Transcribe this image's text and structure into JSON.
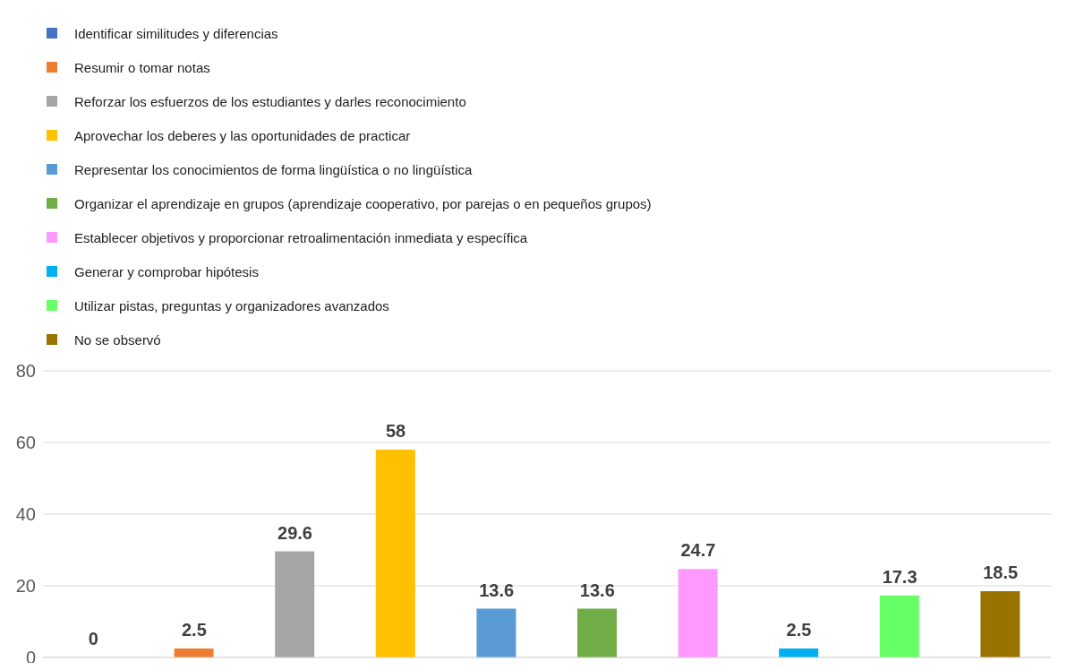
{
  "chart_data": {
    "type": "bar",
    "categories": [
      null,
      null,
      null,
      null,
      null,
      null,
      null,
      null,
      null,
      null
    ],
    "stacked": true,
    "series": [
      {
        "name": "Identificar similitudes y diferencias",
        "color": "#4472c4",
        "values": [
          0,
          null,
          null,
          null,
          null,
          null,
          null,
          null,
          null,
          null
        ]
      },
      {
        "name": "Resumir o tomar notas",
        "color": "#ed7d31",
        "values": [
          null,
          2.5,
          null,
          null,
          null,
          null,
          null,
          null,
          null,
          null
        ]
      },
      {
        "name": "Reforzar los esfuerzos de los estudiantes y darles reconocimiento",
        "color": "#a5a5a5",
        "values": [
          null,
          null,
          29.6,
          null,
          null,
          null,
          null,
          null,
          null,
          null
        ]
      },
      {
        "name": "Aprovechar los deberes y las oportunidades de practicar",
        "color": "#ffc000",
        "values": [
          null,
          null,
          null,
          58,
          null,
          null,
          null,
          null,
          null,
          null
        ]
      },
      {
        "name": "Representar los conocimientos de forma lingüística o no lingüística",
        "color": "#5b9bd5",
        "values": [
          null,
          null,
          null,
          null,
          13.6,
          null,
          null,
          null,
          null,
          null
        ]
      },
      {
        "name": "Organizar el aprendizaje en grupos (aprendizaje cooperativo, por parejas o en pequeños grupos)",
        "color": "#70ad47",
        "values": [
          null,
          null,
          null,
          null,
          null,
          13.6,
          null,
          null,
          null,
          null
        ]
      },
      {
        "name": "Establecer objetivos y proporcionar retroalimentación inmediata y específica",
        "color": "#ff99ff",
        "values": [
          null,
          null,
          null,
          null,
          null,
          null,
          24.7,
          null,
          null,
          null
        ]
      },
      {
        "name": "Generar y comprobar hipótesis",
        "color": "#00b0f0",
        "values": [
          null,
          null,
          null,
          null,
          null,
          null,
          null,
          2.5,
          null,
          null
        ]
      },
      {
        "name": "Utilizar pistas, preguntas y organizadores avanzados",
        "color": "#66ff66",
        "values": [
          null,
          null,
          null,
          null,
          null,
          null,
          null,
          null,
          17.3,
          null
        ]
      },
      {
        "name": "No se observó",
        "color": "#997300",
        "values": [
          null,
          null,
          null,
          null,
          null,
          null,
          null,
          null,
          null,
          18.5
        ]
      }
    ],
    "ylim": [
      0,
      80
    ],
    "yticks": [
      0,
      20,
      40,
      60,
      80
    ],
    "grid": "y",
    "legend": "top left",
    "tick_labels": "y",
    "data_labels": true
  }
}
